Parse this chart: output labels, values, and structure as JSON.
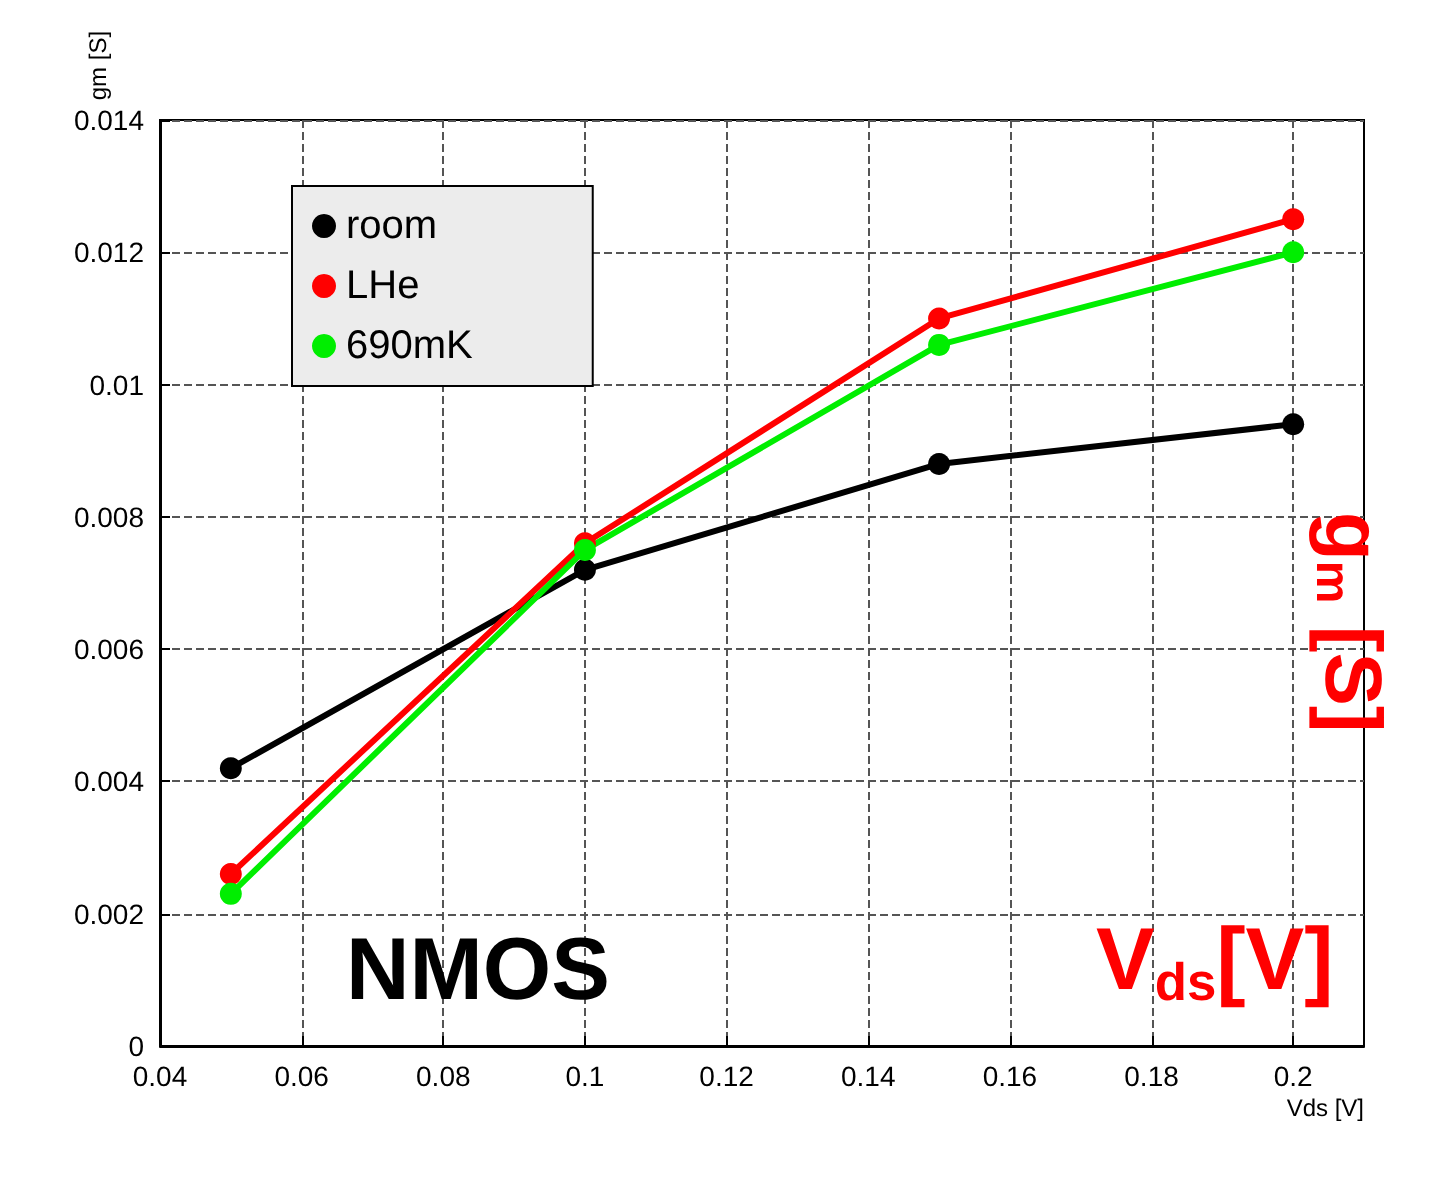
{
  "chart_data": {
    "type": "line",
    "xlabel": "Vds [V]",
    "ylabel": "gm [S]",
    "x": [
      0.05,
      0.1,
      0.15,
      0.2
    ],
    "series": [
      {
        "name": "room",
        "color": "#000000",
        "values": [
          0.0042,
          0.0072,
          0.0088,
          0.0094
        ]
      },
      {
        "name": "LHe",
        "color": "#ff0000",
        "values": [
          0.0026,
          0.0076,
          0.011,
          0.0125
        ]
      },
      {
        "name": "690mK",
        "color": "#00ee00",
        "values": [
          0.0023,
          0.0075,
          0.0106,
          0.012
        ]
      }
    ],
    "xlim": [
      0.04,
      0.21
    ],
    "xticks": [
      0.04,
      0.06,
      0.08,
      0.1,
      0.12,
      0.14,
      0.16,
      0.18,
      0.2
    ],
    "ylim": [
      0,
      0.014
    ],
    "yticks": [
      0,
      0.002,
      0.004,
      0.006,
      0.008,
      0.01,
      0.012,
      0.014
    ],
    "grid": true,
    "legend": "top left",
    "marker": "circle",
    "line_style": "solid",
    "annotations": [
      "NMOS",
      "g$_{m}$ [S]",
      "V$_{ds}$[V]"
    ]
  }
}
